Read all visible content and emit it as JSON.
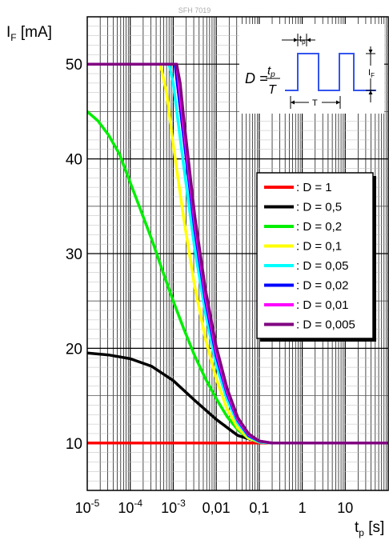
{
  "watermark": "SFH 7019",
  "chart_data": {
    "type": "line",
    "ylabel": {
      "main": "I",
      "sub": "F",
      "unit": " [mA]"
    },
    "xlabel": {
      "main": "t",
      "sub": "p",
      "unit": " [s]"
    },
    "xscale": "log",
    "xlim": [
      1e-05,
      100
    ],
    "ylim": [
      5,
      55
    ],
    "y_ticks": [
      {
        "value": 10,
        "label": "10"
      },
      {
        "value": 20,
        "label": "20"
      },
      {
        "value": 30,
        "label": "30"
      },
      {
        "value": 40,
        "label": "40"
      },
      {
        "value": 50,
        "label": "50"
      }
    ],
    "x_ticks": [
      {
        "value": 1e-05,
        "base": "10",
        "exp": "-5",
        "label": ""
      },
      {
        "value": 0.0001,
        "base": "10",
        "exp": "-4",
        "label": ""
      },
      {
        "value": 0.001,
        "base": "10",
        "exp": "-3",
        "label": ""
      },
      {
        "value": 0.01,
        "base": "",
        "exp": "",
        "label": "0,01"
      },
      {
        "value": 0.1,
        "base": "",
        "exp": "",
        "label": "0,1"
      },
      {
        "value": 1,
        "base": "",
        "exp": "",
        "label": "1"
      },
      {
        "value": 10,
        "base": "",
        "exp": "",
        "label": "10"
      }
    ],
    "grid": true,
    "legend_position": "right",
    "series": [
      {
        "name": ": D = 1",
        "color": "#ff0000",
        "points": [
          [
            1e-05,
            10
          ],
          [
            100,
            10
          ]
        ]
      },
      {
        "name": ": D = 0,5",
        "color": "#000000",
        "points": [
          [
            1e-05,
            19.5
          ],
          [
            3.16e-05,
            19.3
          ],
          [
            0.0001,
            18.9
          ],
          [
            0.000316,
            18.1
          ],
          [
            0.001,
            16.6
          ],
          [
            0.00316,
            14.5
          ],
          [
            0.01,
            12.5
          ],
          [
            0.0316,
            10.8
          ],
          [
            0.1,
            10.1
          ],
          [
            0.2,
            10
          ],
          [
            100,
            10
          ]
        ]
      },
      {
        "name": ": D = 0,2",
        "color": "#00ee00",
        "points": [
          [
            1e-05,
            45
          ],
          [
            1.78e-05,
            44
          ],
          [
            3.16e-05,
            42.5
          ],
          [
            5.62e-05,
            40.5
          ],
          [
            0.0001,
            37.5
          ],
          [
            0.000178,
            34.5
          ],
          [
            0.000316,
            31.5
          ],
          [
            0.000562,
            28.2
          ],
          [
            0.001,
            25
          ],
          [
            0.00178,
            22
          ],
          [
            0.00316,
            19.2
          ],
          [
            0.00562,
            16.8
          ],
          [
            0.01,
            14.7
          ],
          [
            0.0178,
            12.8
          ],
          [
            0.0316,
            11.4
          ],
          [
            0.0562,
            10.5
          ],
          [
            0.1,
            10.1
          ],
          [
            0.2,
            10
          ],
          [
            100,
            10
          ]
        ]
      },
      {
        "name": ": D = 0,1",
        "color": "#ffff00",
        "points": [
          [
            0.0005,
            50
          ],
          [
            0.0007,
            47
          ],
          [
            0.001,
            41.5
          ],
          [
            0.00178,
            33.5
          ],
          [
            0.00316,
            26.5
          ],
          [
            0.00562,
            21
          ],
          [
            0.01,
            16.8
          ],
          [
            0.0178,
            13.6
          ],
          [
            0.0316,
            11.6
          ],
          [
            0.0562,
            10.5
          ],
          [
            0.1,
            10.1
          ],
          [
            0.2,
            10
          ],
          [
            100,
            10
          ]
        ]
      },
      {
        "name": ": D = 0,05",
        "color": "#00ffff",
        "points": [
          [
            0.0008,
            50
          ],
          [
            0.001,
            48
          ],
          [
            0.00178,
            39
          ],
          [
            0.00316,
            30.5
          ],
          [
            0.00562,
            23.7
          ],
          [
            0.01,
            18.3
          ],
          [
            0.0178,
            14.6
          ],
          [
            0.0316,
            12.1
          ],
          [
            0.0562,
            10.7
          ],
          [
            0.1,
            10.1
          ],
          [
            0.2,
            10
          ],
          [
            100,
            10
          ]
        ]
      },
      {
        "name": ": D = 0,02",
        "color": "#0000ff",
        "points": [
          [
            0.0011,
            50
          ],
          [
            0.00178,
            42
          ],
          [
            0.00316,
            32.5
          ],
          [
            0.00562,
            25
          ],
          [
            0.01,
            19.2
          ],
          [
            0.0178,
            15.2
          ],
          [
            0.0316,
            12.4
          ],
          [
            0.0562,
            10.8
          ],
          [
            0.1,
            10.2
          ],
          [
            0.2,
            10
          ],
          [
            100,
            10
          ]
        ]
      },
      {
        "name": ": D = 0,01",
        "color": "#ff00ff",
        "points": [
          [
            0.0012,
            50
          ],
          [
            0.00178,
            43
          ],
          [
            0.00316,
            33.2
          ],
          [
            0.00562,
            25.5
          ],
          [
            0.01,
            19.6
          ],
          [
            0.0178,
            15.4
          ],
          [
            0.0316,
            12.5
          ],
          [
            0.0562,
            10.9
          ],
          [
            0.1,
            10.2
          ],
          [
            0.2,
            10
          ],
          [
            100,
            10
          ]
        ]
      },
      {
        "name": ": D = 0,005",
        "color": "#800080",
        "points": [
          [
            1e-05,
            50
          ],
          [
            0.0012,
            50
          ],
          [
            0.00145,
            48
          ],
          [
            0.00178,
            44
          ],
          [
            0.00316,
            34
          ],
          [
            0.00562,
            26.2
          ],
          [
            0.01,
            20.2
          ],
          [
            0.0178,
            15.8
          ],
          [
            0.0316,
            12.7
          ],
          [
            0.0562,
            11
          ],
          [
            0.1,
            10.2
          ],
          [
            0.2,
            10
          ],
          [
            100,
            10
          ]
        ]
      }
    ]
  },
  "inset": {
    "formula_lhs": "D =",
    "formula_num": "t",
    "formula_num_sub": "p",
    "formula_den": "T",
    "tp_label": "t",
    "tp_label_sub": "p",
    "period_label": "T",
    "amp_label": "I",
    "amp_label_sub": "F"
  }
}
